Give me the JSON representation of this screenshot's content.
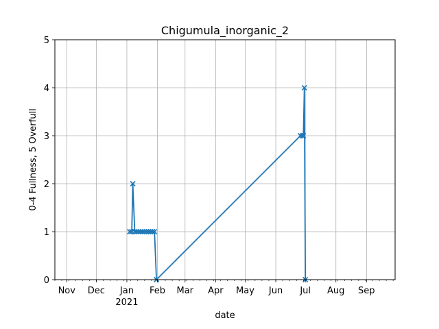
{
  "chart_data": {
    "type": "line",
    "title": "Chigumula_inorganic_2",
    "xlabel": "date",
    "ylabel": "0-4 Fullness, 5 Overfull",
    "xlim": [
      "2020-10-20",
      "2021-09-30"
    ],
    "ylim": [
      0,
      5
    ],
    "yticks": [
      0,
      1,
      2,
      3,
      4,
      5
    ],
    "xticks": [
      {
        "date": "2020-11-01",
        "label": "Nov"
      },
      {
        "date": "2020-12-01",
        "label": "Dec"
      },
      {
        "date": "2021-01-01",
        "label": "Jan",
        "sublabel": "2021"
      },
      {
        "date": "2021-02-01",
        "label": "Feb"
      },
      {
        "date": "2021-03-01",
        "label": "Mar"
      },
      {
        "date": "2021-04-01",
        "label": "Apr"
      },
      {
        "date": "2021-05-01",
        "label": "May"
      },
      {
        "date": "2021-06-01",
        "label": "Jun"
      },
      {
        "date": "2021-07-01",
        "label": "Jul"
      },
      {
        "date": "2021-08-01",
        "label": "Aug"
      },
      {
        "date": "2021-09-01",
        "label": "Sep"
      }
    ],
    "grid": true,
    "line_color": "#1f77b4",
    "marker": "x",
    "series": [
      {
        "x": [
          "2021-01-04",
          "2021-01-06",
          "2021-01-07",
          "2021-01-09",
          "2021-01-11",
          "2021-01-13",
          "2021-01-15",
          "2021-01-17",
          "2021-01-19",
          "2021-01-21",
          "2021-01-23",
          "2021-01-25",
          "2021-01-27",
          "2021-01-29",
          "2021-01-31",
          "2021-06-26",
          "2021-06-28",
          "2021-06-29",
          "2021-06-30",
          "2021-07-01"
        ],
        "y": [
          1,
          1,
          2,
          1,
          1,
          1,
          1,
          1,
          1,
          1,
          1,
          1,
          1,
          1,
          0,
          3,
          3,
          3,
          4,
          0
        ]
      }
    ]
  }
}
